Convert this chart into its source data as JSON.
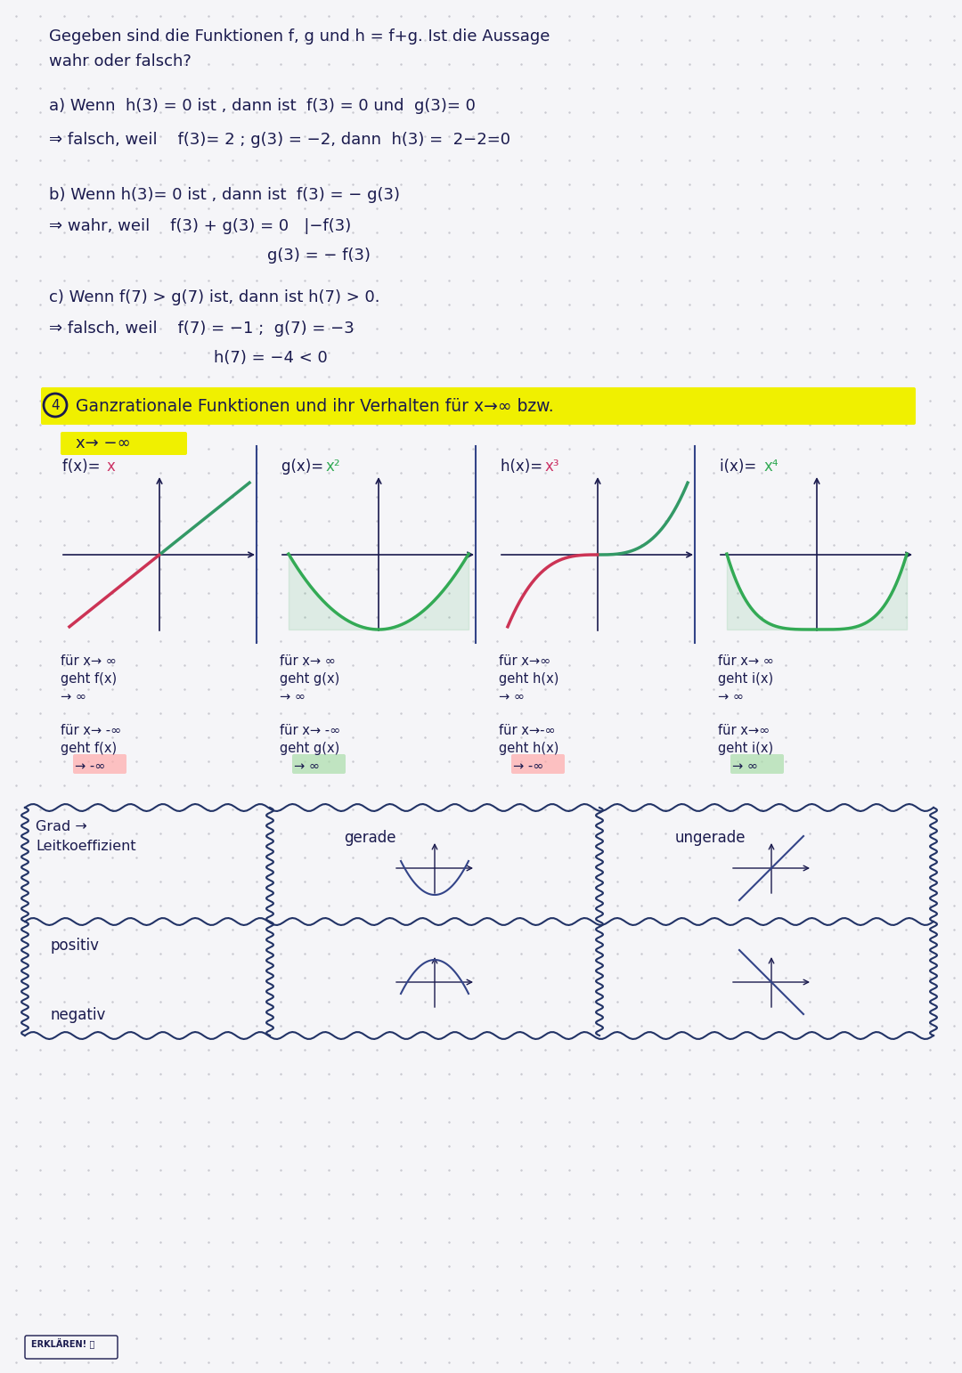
{
  "bg_color": "#f5f5f8",
  "dot_color": "#c8c8d0",
  "text_color": "#1a1a4e",
  "highlight_yellow": "#f0f000",
  "highlight_pink": "#ffaaaa",
  "highlight_green": "#aaffaa",
  "line1": "Gegeben sind die Funktionen f, g und h = f+g. Ist die Aussage",
  "line2": "wahr oder falsch?",
  "line3a": "a) Wenn  h(3) = 0 ist , dann ist  f(3) = 0 und  g(3)= 0",
  "line4a": "⇒ falsch, weil    f(3)= 2 ; g(3) = −2, dann  h(3) =  2−2=0",
  "line5b": "b) Wenn h(3)= 0 ist , dann ist  f(3) = − g(3)",
  "line6b": "⇒ wahr, weil    f(3) + g(3) = 0   |−f(3)",
  "line7b": "g(3) = − f(3)",
  "line8c": "c) Wenn f(7) > g(7) ist, dann ist h(7) > 0.",
  "line9c": "⇒ falsch, weil    f(7) = −1 ;  g(7) = −3",
  "line10c": "h(7) = −4 < 0",
  "section4": "Ganzrationale Funktionen und ihr Verhalten für x→∞ bzw.",
  "section4b": "x→ −∞",
  "func_labels": [
    "f(x)= x",
    "g(x)= x²",
    "h(x)= x³",
    "i(x)= x⁴"
  ],
  "behavior_pos": [
    "für x→ ∞\ngeht f(x)\n→ ∞",
    "für x→ ∞\ngeht g(x)\n→ ∞",
    "für x→∞\ngeht h(x)\n→ ∞",
    "für x→ ∞\ngeht i(x)\n→ ∞"
  ],
  "behavior_neg": [
    "für x→ -∞\ngeht f(x)\n→ -∞",
    "für x→ -∞\ngeht g(x)\n→ ∞",
    "für x→-∞\ngeht h(x)\n→ -∞",
    "für x→∞\ngeht i(x)\n→ ∞"
  ],
  "neg_colors": [
    "#ffaaaa",
    "#aaddaa",
    "#ffaaaa",
    "#aaddaa"
  ],
  "table_headers": [
    "Grad →\nLeitkoeffizient",
    "gerade",
    "ungerade"
  ],
  "table_rows": [
    "positiv",
    "negativ"
  ]
}
